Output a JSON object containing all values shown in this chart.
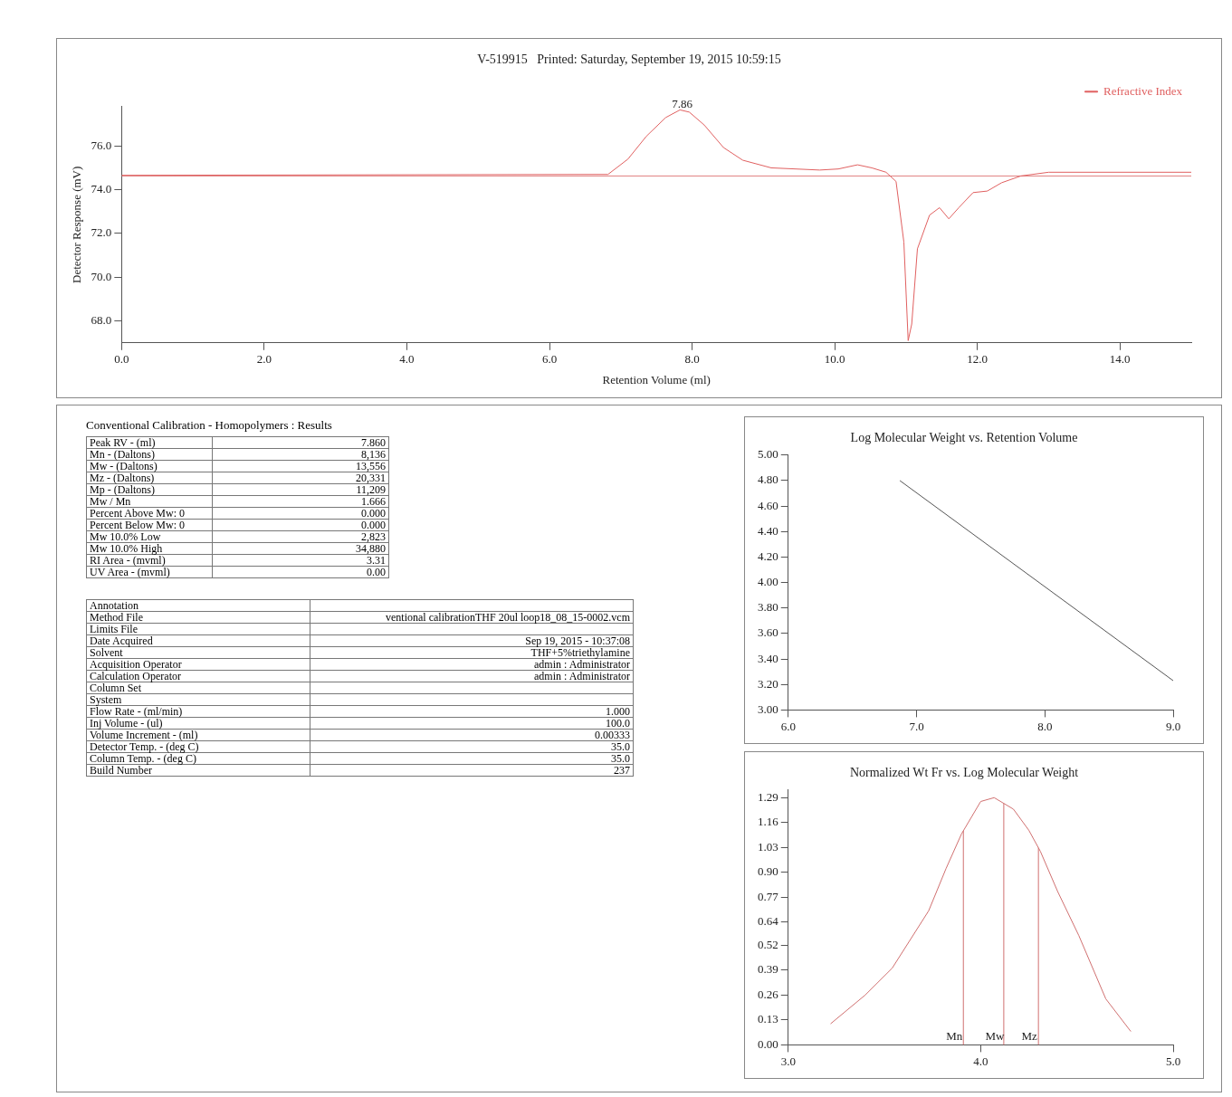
{
  "chart_data": [
    {
      "type": "line",
      "title": "V-519915   Printed: Saturday, September 19, 2015 10:59:15",
      "xlabel": "Retention Volume (ml)",
      "ylabel": "Detector Response (mV)",
      "legend": "top right",
      "xlim": [
        0,
        15
      ],
      "xticks": [
        {
          "value": 0,
          "label": "0.0"
        },
        {
          "value": 2,
          "label": "2.0"
        },
        {
          "value": 4,
          "label": "4.0"
        },
        {
          "value": 6,
          "label": "6.0"
        },
        {
          "value": 8,
          "label": "8.0"
        },
        {
          "value": 10,
          "label": "10.0"
        },
        {
          "value": 12,
          "label": "12.0"
        },
        {
          "value": 14,
          "label": "14.0"
        }
      ],
      "ylim": [
        67.0,
        77.8
      ],
      "yticks": [
        {
          "value": 68,
          "label": "68.0"
        },
        {
          "value": 70,
          "label": "70.0"
        },
        {
          "value": 72,
          "label": "72.0"
        },
        {
          "value": 74,
          "label": "74.0"
        },
        {
          "value": 76,
          "label": "76.0"
        }
      ],
      "series": [
        {
          "name": "Refractive Index",
          "color": "#e06060",
          "x": [
            0,
            6.82,
            7.1,
            7.36,
            7.63,
            7.83,
            7.96,
            8.17,
            8.44,
            8.71,
            9.11,
            9.79,
            10.05,
            10.32,
            10.52,
            10.72,
            10.86,
            10.97,
            11.03,
            11.08,
            11.16,
            11.33,
            11.47,
            11.6,
            11.74,
            11.94,
            12.14,
            12.34,
            12.61,
            13.0,
            15
          ],
          "values": [
            74.66,
            74.7,
            75.4,
            76.45,
            77.3,
            77.65,
            77.55,
            76.96,
            75.93,
            75.35,
            75.0,
            74.9,
            74.95,
            75.14,
            75.0,
            74.8,
            74.38,
            71.6,
            67.1,
            67.86,
            71.3,
            72.84,
            73.18,
            72.67,
            73.18,
            73.87,
            73.94,
            74.32,
            74.63,
            74.8,
            74.8
          ]
        },
        {
          "color": "#e08080",
          "x": [
            0,
            15
          ],
          "values": [
            74.63,
            74.63
          ]
        }
      ],
      "annotations": [
        {
          "text": "7.86",
          "x": 7.86,
          "y": 77.65
        }
      ]
    },
    {
      "type": "other",
      "title": "Conventional Calibration - Homopolymers : Results",
      "categories": [
        "Peak RV - (ml)",
        "Mn - (Daltons)",
        "Mw - (Daltons)",
        "Mz - (Daltons)",
        "Mp - (Daltons)",
        "Mw / Mn",
        "Percent Above Mw:   0",
        "Percent Below Mw:   0",
        "Mw 10.0% Low",
        "Mw 10.0% High",
        "RI Area - (mvml)",
        "UV Area - (mvml)"
      ],
      "value_labels": [
        "7.860",
        "8,136",
        "13,556",
        "20,331",
        "11,209",
        "1.666",
        "0.000",
        "0.000",
        "2,823",
        "34,880",
        "3.31",
        "0.00"
      ]
    },
    {
      "type": "other",
      "categories": [
        "Annotation",
        "Method File",
        "Limits File",
        "Date Acquired",
        "Solvent",
        "Acquisition Operator",
        "Calculation Operator",
        "Column Set",
        "System",
        "Flow Rate - (ml/min)",
        "Inj Volume - (ul)",
        "Volume Increment - (ml)",
        "Detector Temp. - (deg C)",
        "Column Temp. - (deg C)",
        "Build Number"
      ],
      "value_labels": [
        null,
        "ventional calibrationTHF 20ul loop18_08_15-0002.vcm",
        null,
        "Sep 19, 2015 - 10:37:08",
        "THF+5%triethylamine",
        "admin : Administrator",
        "admin : Administrator",
        null,
        null,
        "1.000",
        "100.0",
        "0.00333",
        "35.0",
        "35.0",
        "237"
      ]
    },
    {
      "type": "line",
      "title": "Log Molecular Weight vs. Retention Volume",
      "xlim": [
        6,
        9
      ],
      "xticks": [
        {
          "value": 6,
          "label": "6.0"
        },
        {
          "value": 7,
          "label": "7.0"
        },
        {
          "value": 8,
          "label": "8.0"
        },
        {
          "value": 9,
          "label": "9.0"
        }
      ],
      "ylim": [
        3,
        5
      ],
      "yticks": [
        {
          "value": 3,
          "label": "3.00"
        },
        {
          "value": 3.2,
          "label": "3.20"
        },
        {
          "value": 3.4,
          "label": "3.40"
        },
        {
          "value": 3.6,
          "label": "3.60"
        },
        {
          "value": 3.8,
          "label": "3.80"
        },
        {
          "value": 4,
          "label": "4.00"
        },
        {
          "value": 4.2,
          "label": "4.20"
        },
        {
          "value": 4.4,
          "label": "4.40"
        },
        {
          "value": 4.6,
          "label": "4.60"
        },
        {
          "value": 4.8,
          "label": "4.80"
        },
        {
          "value": 5,
          "label": "5.00"
        }
      ],
      "series": [
        {
          "color": "#555555",
          "x": [
            6.87,
            9.0
          ],
          "values": [
            4.8,
            3.23
          ]
        }
      ]
    },
    {
      "type": "line",
      "title": "Normalized Wt Fr vs. Log Molecular Weight",
      "xlim": [
        3,
        5
      ],
      "xticks": [
        {
          "value": 3,
          "label": "3.0"
        },
        {
          "value": 4,
          "label": "4.0"
        },
        {
          "value": 5,
          "label": "5.0"
        }
      ],
      "ylim": [
        0,
        1.33
      ],
      "yticks": [
        {
          "value": 0,
          "label": "0.00"
        },
        0.13,
        0.26,
        0.39,
        0.52,
        0.64,
        0.77,
        {
          "value": 0.9,
          "label": "0.90"
        },
        1.03,
        1.16,
        1.29
      ],
      "series": [
        {
          "color": "#d07070",
          "x": [
            3.22,
            3.4,
            3.54,
            3.73,
            3.82,
            3.9,
            4.0,
            4.07,
            4.17,
            4.25,
            4.31,
            4.4,
            4.51,
            4.65,
            4.78
          ],
          "values": [
            0.11,
            0.26,
            0.4,
            0.7,
            0.92,
            1.1,
            1.27,
            1.29,
            1.23,
            1.12,
            1.01,
            0.8,
            0.57,
            0.24,
            0.07
          ]
        }
      ],
      "ref_lines": [
        {
          "axis": "x",
          "value": 3.91,
          "label": "Mn"
        },
        {
          "axis": "x",
          "value": 4.12,
          "label": "Mw"
        },
        {
          "axis": "x",
          "value": 4.3,
          "label": "Mz"
        }
      ]
    }
  ]
}
